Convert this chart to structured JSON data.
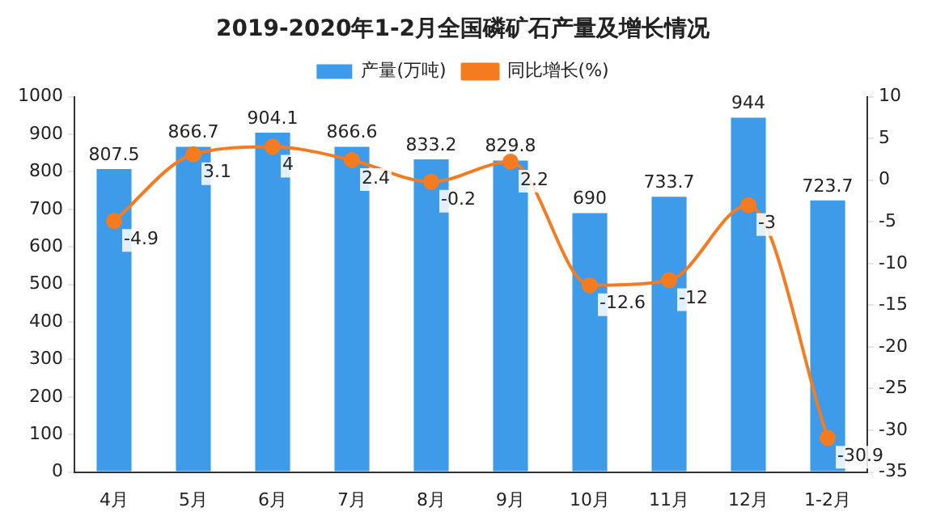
{
  "chart_data": {
    "type": "bar",
    "title": "2019-2020年1-2月全国磷矿石产量及增长情况",
    "categories": [
      "4月",
      "5月",
      "6月",
      "7月",
      "8月",
      "9月",
      "10月",
      "11月",
      "12月",
      "1-2月"
    ],
    "series": [
      {
        "name": "产量(万吨)",
        "type": "bar",
        "color": "#3d9be9",
        "values": [
          807.5,
          866.7,
          904.1,
          866.6,
          833.2,
          829.8,
          690,
          733.7,
          944,
          723.7
        ]
      },
      {
        "name": "同比增长(%)",
        "type": "line",
        "axis": "y2",
        "color": "#f47b20",
        "values": [
          -4.9,
          3.1,
          4,
          2.4,
          -0.2,
          2.2,
          -12.6,
          -12,
          -3,
          -30.9
        ]
      }
    ],
    "ylim": [
      0,
      1000
    ],
    "yticks": [
      0,
      100,
      200,
      300,
      400,
      500,
      600,
      700,
      800,
      900,
      1000
    ],
    "y2lim": [
      -35,
      10
    ],
    "y2ticks": [
      -35,
      -30,
      -25,
      -20,
      -15,
      -10,
      -5,
      0,
      5,
      10
    ],
    "data_labels": true,
    "legend": "top",
    "grid": false,
    "marker": "circle",
    "line_style": "solid"
  }
}
